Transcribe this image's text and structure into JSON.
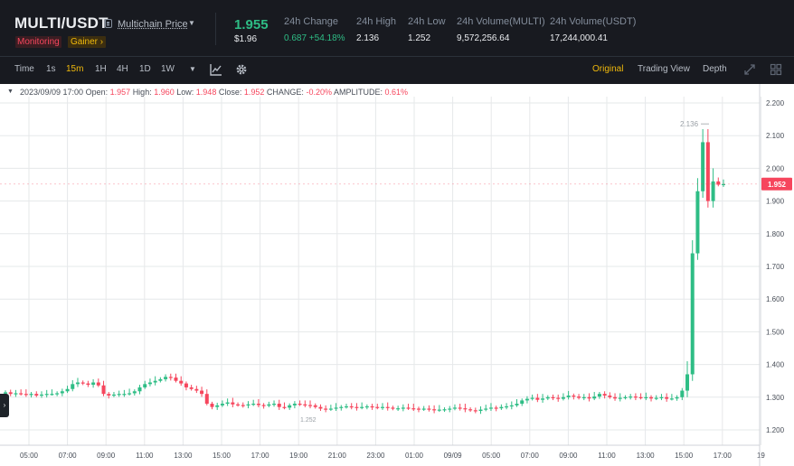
{
  "header": {
    "pair": "MULTI/USDT",
    "multichain_price_label": "Multichain Price",
    "tag_monitoring": "Monitoring",
    "tag_gainer": "Gainer ›",
    "last_price": "1.955",
    "last_price_usd": "$1.96",
    "stats": [
      {
        "label": "24h Change",
        "value": "0.687 +54.18%",
        "positive": true
      },
      {
        "label": "24h High",
        "value": "2.136"
      },
      {
        "label": "24h Low",
        "value": "1.252"
      },
      {
        "label": "24h Volume(MULTI)",
        "value": "9,572,256.64"
      },
      {
        "label": "24h Volume(USDT)",
        "value": "17,244,000.41"
      }
    ]
  },
  "toolbar": {
    "intervals": [
      "Time",
      "1s",
      "15m",
      "1H",
      "4H",
      "1D",
      "1W"
    ],
    "active_interval": "15m",
    "views": [
      "Original",
      "Trading View",
      "Depth"
    ],
    "active_view": "Original",
    "icons": [
      "indicator-icon",
      "settings-icon",
      "expand-icon",
      "grid-layout-icon"
    ]
  },
  "legend": {
    "datetime": "2023/09/09 17:00",
    "open_label": "Open:",
    "open": "1.957",
    "high_label": "High:",
    "high": "1.960",
    "low_label": "Low:",
    "low": "1.948",
    "close_label": "Close:",
    "close": "1.952",
    "change_label": "CHANGE:",
    "change": "-0.20%",
    "amplitude_label": "AMPLITUDE:",
    "amplitude": "0.61%"
  },
  "colors": {
    "up": "#2ebd85",
    "down": "#f6465d",
    "accent": "#f0b90b",
    "background": "#181a20",
    "chart_background": "#ffffff",
    "grid": "#e6e8ea"
  },
  "chart_data": {
    "type": "candlestick",
    "y_ticks": [
      "2.200",
      "2.100",
      "2.000",
      "1.900",
      "1.800",
      "1.700",
      "1.600",
      "1.500",
      "1.400",
      "1.300",
      "1.200"
    ],
    "ylim": [
      1.17,
      2.22
    ],
    "x_ticks": [
      "05:00",
      "07:00",
      "09:00",
      "11:00",
      "13:00",
      "15:00",
      "17:00",
      "19:00",
      "21:00",
      "23:00",
      "01:00",
      "09/09",
      "05:00",
      "07:00",
      "09:00",
      "11:00",
      "13:00",
      "15:00",
      "17:00",
      "19"
    ],
    "current_price": "1.952",
    "high_marker": "2.136",
    "low_marker": "1.252",
    "candle_close_path": [
      1.315,
      1.31,
      1.312,
      1.31,
      1.308,
      1.31,
      1.305,
      1.308,
      1.31,
      1.31,
      1.312,
      1.318,
      1.325,
      1.34,
      1.345,
      1.342,
      1.338,
      1.345,
      1.336,
      1.31,
      1.305,
      1.308,
      1.31,
      1.31,
      1.312,
      1.318,
      1.33,
      1.34,
      1.345,
      1.35,
      1.355,
      1.362,
      1.36,
      1.35,
      1.342,
      1.33,
      1.325,
      1.32,
      1.31,
      1.28,
      1.27,
      1.275,
      1.28,
      1.284,
      1.278,
      1.276,
      1.275,
      1.278,
      1.28,
      1.276,
      1.274,
      1.278,
      1.28,
      1.27,
      1.268,
      1.275,
      1.28,
      1.278,
      1.276,
      1.275,
      1.27,
      1.265,
      1.263,
      1.265,
      1.268,
      1.27,
      1.272,
      1.27,
      1.268,
      1.27,
      1.272,
      1.27,
      1.268,
      1.27,
      1.268,
      1.265,
      1.266,
      1.268,
      1.266,
      1.265,
      1.263,
      1.265,
      1.263,
      1.26,
      1.262,
      1.263,
      1.265,
      1.268,
      1.266,
      1.263,
      1.26,
      1.258,
      1.262,
      1.265,
      1.268,
      1.266,
      1.27,
      1.272,
      1.275,
      1.28,
      1.29,
      1.295,
      1.298,
      1.292,
      1.296,
      1.3,
      1.298,
      1.295,
      1.3,
      1.305,
      1.302,
      1.298,
      1.3,
      1.296,
      1.302,
      1.31,
      1.305,
      1.3,
      1.296,
      1.298,
      1.3,
      1.302,
      1.3,
      1.298,
      1.3,
      1.296,
      1.298,
      1.3,
      1.295,
      1.296,
      1.3,
      1.32,
      1.37,
      1.74,
      1.93,
      2.08,
      1.9,
      1.96,
      1.95,
      1.952
    ]
  }
}
